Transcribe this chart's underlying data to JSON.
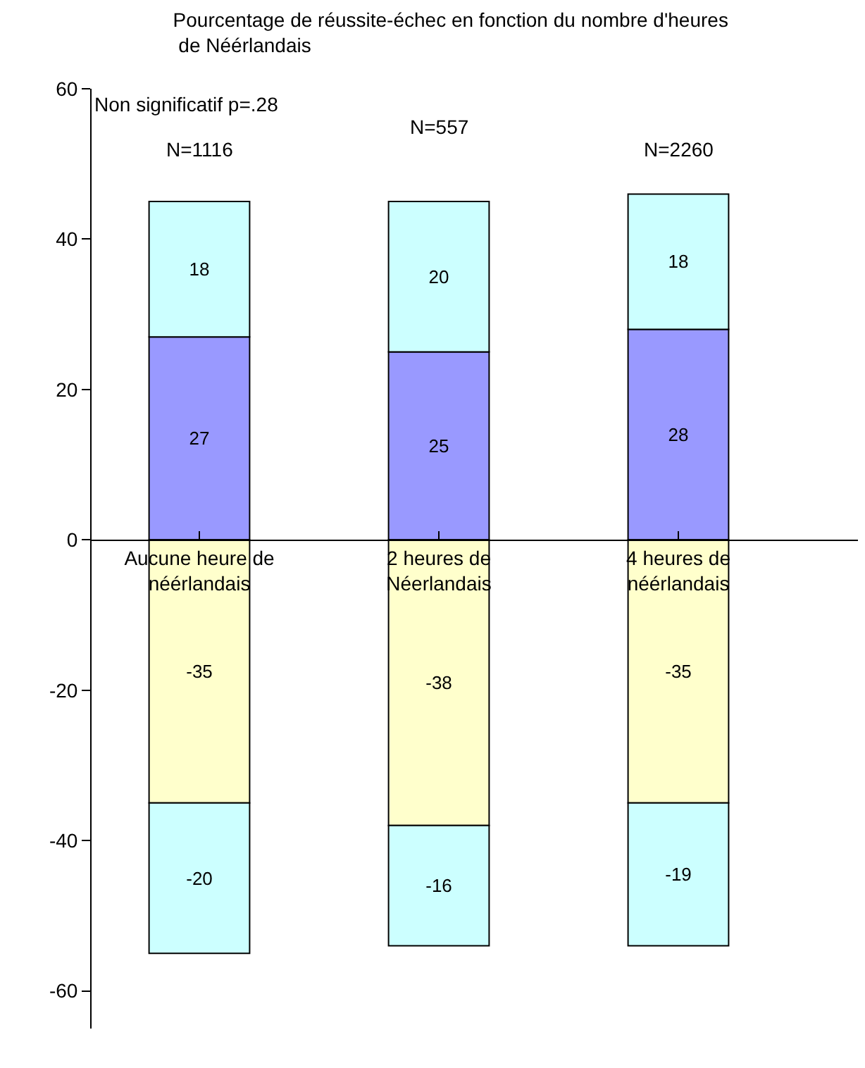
{
  "chart_data": {
    "type": "bar",
    "stacked": true,
    "title": "Pourcentage de réussite-échec en fonction du nombre d'heures\n de Néérlandais",
    "categories": [
      "Aucune heure de néérlandais",
      "2 heures de Néerlandais",
      "4 heures de néérlandais"
    ],
    "series": [
      {
        "color": "#9999ff",
        "values": [
          27,
          25,
          28
        ]
      },
      {
        "color": "#ccffff",
        "values": [
          18,
          20,
          18
        ]
      },
      {
        "color": "#ffffcc",
        "values": [
          -35,
          -38,
          -35
        ]
      },
      {
        "color": "#ccffff",
        "values": [
          -20,
          -16,
          -19
        ]
      }
    ],
    "ylim": [
      -65,
      60
    ],
    "yticks": [
      -60,
      -40,
      -20,
      0,
      20,
      40,
      60
    ],
    "grid": false,
    "data_labels": true,
    "annotations": [
      "Non significatif p=.28",
      "N=1116",
      "N=557",
      "N=2260"
    ]
  }
}
